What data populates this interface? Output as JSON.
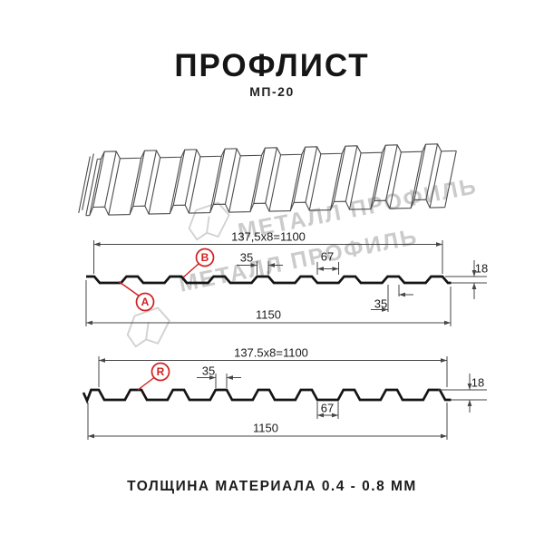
{
  "page": {
    "title": "ПРОФЛИСТ",
    "subtitle": "МП-20",
    "footer": "ТОЛЩИНА МАТЕРИАЛА 0.4 - 0.8 ММ",
    "watermark": "МЕТАЛЛ ПРОФИЛЬ"
  },
  "colors": {
    "accent_red": "#d22020",
    "profile_black": "#141414",
    "dim_gray": "#464646",
    "sheet_gray": "#4c4c4c",
    "watermark_gray": "#cccccc"
  },
  "profile_top": {
    "callout_a": "A",
    "callout_b": "B",
    "dim_pitch": "137,5x8=1100",
    "dim_crest_width": "35",
    "dim_valley_width": "67",
    "dim_height": "18",
    "dim_crest_width_bottom": "35",
    "dim_overall_width": "1150"
  },
  "profile_bottom": {
    "callout_r": "R",
    "dim_pitch": "137.5x8=1100",
    "dim_crest_width": "35",
    "dim_valley_width": "67",
    "dim_height": "18",
    "dim_overall_width": "1150"
  }
}
